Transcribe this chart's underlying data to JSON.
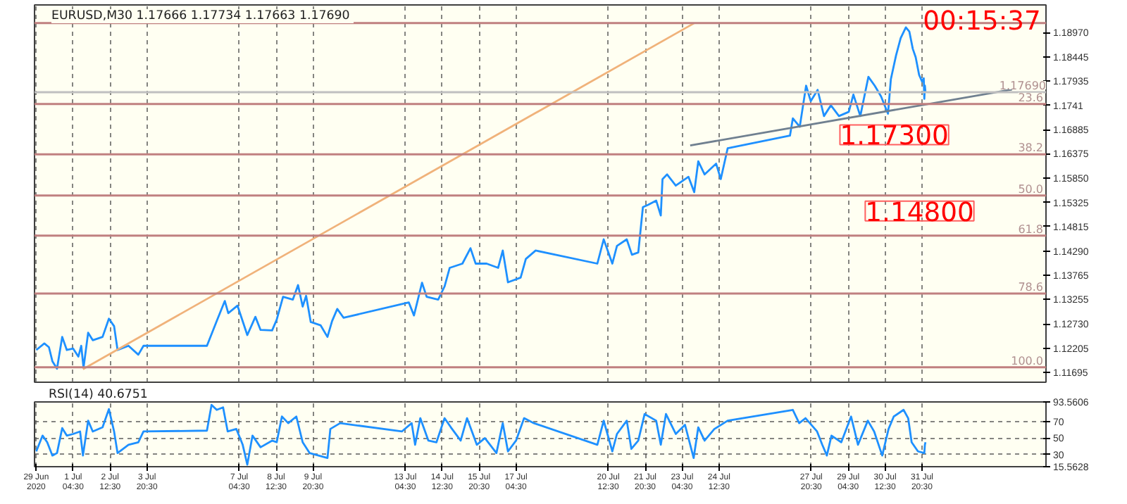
{
  "chart_data": [
    {
      "type": "line",
      "title": "EURUSD,M30  1.17666 1.17734 1.17663 1.17690",
      "tick_labels": "y",
      "grid": "x",
      "xlim": [
        "2020-06-29T19:00",
        "2020-08-05T08:00"
      ],
      "ylim": [
        1.1148,
        1.1956
      ],
      "xticks": [
        {
          "value": "2020-06-29T20:30",
          "label": null
        },
        {
          "value": "2020-07-01T04:30",
          "label": null
        },
        {
          "value": "2020-07-02T12:30",
          "label": null
        },
        {
          "value": "2020-07-03T20:30",
          "label": null
        },
        {
          "value": "2020-07-07T04:30",
          "label": null
        },
        {
          "value": "2020-07-08T12:30",
          "label": null
        },
        {
          "value": "2020-07-09T20:30",
          "label": null
        },
        {
          "value": "2020-07-13T04:30",
          "label": null
        },
        {
          "value": "2020-07-14T12:30",
          "label": null
        },
        {
          "value": "2020-07-15T20:30",
          "label": null
        },
        {
          "value": "2020-07-17T04:30",
          "label": null
        },
        {
          "value": "2020-07-20T12:30",
          "label": null
        },
        {
          "value": "2020-07-21T20:30",
          "label": null
        },
        {
          "value": "2020-07-23T04:30",
          "label": null
        },
        {
          "value": "2020-07-24T12:30",
          "label": null
        },
        {
          "value": "2020-07-27T20:30",
          "label": null
        },
        {
          "value": "2020-07-29T04:30",
          "label": null
        },
        {
          "value": "2020-07-30T12:30",
          "label": null
        },
        {
          "value": "2020-07-31T20:30",
          "label": null
        }
      ],
      "yticks": [
        {
          "value": 1.1897,
          "label": "1.18970"
        },
        1.18445,
        1.17935,
        1.1741,
        1.16885,
        1.16375,
        {
          "value": 1.1585,
          "label": "1.15850"
        },
        1.15325,
        1.14815,
        {
          "value": 1.1429,
          "label": "1.14290"
        },
        1.13765,
        1.13255,
        {
          "value": 1.1273,
          "label": "1.12730"
        },
        1.12205,
        1.11695
      ],
      "series": [
        {
          "color": "#1e90ff",
          "x": [
            "2020-06-29T20:30",
            "2020-06-30T03:30",
            "2020-06-30T07:30",
            "2020-06-30T10:30",
            "2020-06-30T14:30",
            "2020-06-30T19:00",
            "2020-06-30T23:00",
            "2020-07-01T04:30",
            "2020-07-01T09:00",
            "2020-07-01T11:30",
            "2020-07-01T13:30",
            "2020-07-01T17:30",
            "2020-07-01T21:30",
            "2020-07-02T06:00",
            "2020-07-02T11:30",
            "2020-07-02T16:00",
            "2020-07-02T19:00",
            "2020-07-03T04:30",
            "2020-07-03T13:00",
            "2020-07-03T17:30",
            "2020-07-06T00:30",
            "2020-07-06T09:00",
            "2020-07-06T16:00",
            "2020-07-06T19:00",
            "2020-07-07T03:00",
            "2020-07-07T11:30",
            "2020-07-07T18:30",
            "2020-07-07T23:00",
            "2020-07-08T09:00",
            "2020-07-08T13:00",
            "2020-07-08T18:30",
            "2020-07-09T03:00",
            "2020-07-09T07:30",
            "2020-07-09T11:30",
            "2020-07-09T14:30",
            "2020-07-09T18:30",
            "2020-07-10T03:00",
            "2020-07-10T09:00",
            "2020-07-10T13:00",
            "2020-07-10T17:30",
            "2020-07-10T23:00",
            "2020-07-13T07:30",
            "2020-07-13T12:00",
            "2020-07-13T19:00",
            "2020-07-13T23:00",
            "2020-07-14T09:00",
            "2020-07-14T14:30",
            "2020-07-14T19:00",
            "2020-07-15T06:00",
            "2020-07-15T13:00",
            "2020-07-15T17:30",
            "2020-07-16T03:00",
            "2020-07-16T13:00",
            "2020-07-16T17:00",
            "2020-07-16T21:30",
            "2020-07-17T08:30",
            "2020-07-17T13:00",
            "2020-07-17T21:30",
            "2020-07-20T03:00",
            "2020-07-20T08:30",
            "2020-07-20T16:00",
            "2020-07-20T20:00",
            "2020-07-21T04:30",
            "2020-07-21T09:00",
            "2020-07-21T14:30",
            "2020-07-21T18:30",
            "2020-07-21T23:00",
            "2020-07-22T06:00",
            "2020-07-22T10:00",
            "2020-07-22T11:30",
            "2020-07-22T15:30",
            "2020-07-22T23:00",
            "2020-07-23T10:00",
            "2020-07-23T15:00",
            "2020-07-23T18:30",
            "2020-07-24T00:00",
            "2020-07-24T10:00",
            "2020-07-24T14:00",
            "2020-07-24T20:00",
            "2020-07-27T02:00",
            "2020-07-27T04:30",
            "2020-07-27T10:30",
            "2020-07-27T16:00",
            "2020-07-27T20:00",
            "2020-07-28T02:00",
            "2020-07-28T07:30",
            "2020-07-28T13:30",
            "2020-07-28T20:30",
            "2020-07-29T05:00",
            "2020-07-29T09:00",
            "2020-07-29T15:00",
            "2020-07-29T22:00",
            "2020-07-30T03:30",
            "2020-07-30T09:00",
            "2020-07-30T15:00",
            "2020-07-30T17:30",
            "2020-07-30T22:00",
            "2020-07-31T02:00",
            "2020-07-31T06:30",
            "2020-07-31T09:30",
            "2020-07-31T12:30",
            "2020-07-31T15:00",
            "2020-07-31T18:00",
            "2020-07-31T20:30",
            "2020-07-31T22:00",
            "2020-07-31T22:30",
            "2020-07-31T23:00",
            "2020-07-31T23:30"
          ],
          "values": [
            1.1217,
            1.1231,
            1.1223,
            1.1193,
            1.1177,
            1.1245,
            1.1217,
            1.122,
            1.1203,
            1.1226,
            1.1179,
            1.1254,
            1.1238,
            1.1245,
            1.1284,
            1.1268,
            1.1217,
            1.1226,
            1.1207,
            1.1226,
            1.1226,
            1.1279,
            1.1322,
            1.1296,
            1.1312,
            1.1249,
            1.1288,
            1.126,
            1.1259,
            1.1282,
            1.1331,
            1.1325,
            1.1356,
            1.131,
            1.1333,
            1.1277,
            1.127,
            1.1245,
            1.1279,
            1.1305,
            1.1286,
            1.1319,
            1.1291,
            1.1361,
            1.1331,
            1.1325,
            1.1353,
            1.1393,
            1.1402,
            1.1435,
            1.1402,
            1.1402,
            1.1393,
            1.143,
            1.1362,
            1.1372,
            1.1412,
            1.143,
            1.1402,
            1.1454,
            1.1402,
            1.144,
            1.1454,
            1.1421,
            1.1426,
            1.1523,
            1.1528,
            1.1537,
            1.1505,
            1.1583,
            1.1593,
            1.1569,
            1.1588,
            1.1555,
            1.1621,
            1.1593,
            1.1616,
            1.1583,
            1.1649,
            1.1676,
            1.1713,
            1.1695,
            1.1783,
            1.175,
            1.1774,
            1.1718,
            1.1741,
            1.1718,
            1.1727,
            1.1764,
            1.1718,
            1.1802,
            1.1783,
            1.176,
            1.1723,
            1.1797,
            1.1848,
            1.1885,
            1.1908,
            1.1899,
            1.1862,
            1.1844,
            1.1806,
            1.1792,
            1.1799,
            1.1755,
            1.1783,
            1.1769
          ]
        },
        {
          "color": "#f0b27a",
          "x": [
            "2020-07-01T13:00",
            "2020-07-23T15:00"
          ],
          "values": [
            1.1176,
            1.1917
          ]
        },
        {
          "color": "#708090",
          "x": [
            "2020-07-23T11:30",
            "2020-08-04T02:30"
          ],
          "values": [
            1.1655,
            1.1775
          ]
        }
      ],
      "ref_lines": [
        {
          "axis": "y",
          "value": 1.1917,
          "label": null,
          "color": "#c08080"
        },
        {
          "axis": "y",
          "value": 1.1744,
          "label": null,
          "color": "#c08080"
        },
        {
          "axis": "y",
          "value": 1.1636,
          "label": null,
          "color": "#c08080"
        },
        {
          "axis": "y",
          "value": 1.1548,
          "label": null,
          "color": "#c08080"
        },
        {
          "axis": "y",
          "value": 1.1462,
          "label": null,
          "color": "#c08080"
        },
        {
          "axis": "y",
          "value": 1.1338,
          "label": null,
          "color": "#c08080"
        },
        {
          "axis": "y",
          "value": 1.118,
          "label": null,
          "color": "#c08080"
        },
        {
          "axis": "y",
          "value": 1.1769,
          "label": "1.17690",
          "color": "#c0c0c0"
        }
      ],
      "annotations": [
        "00:15:37",
        "1.17300",
        "1.14800",
        "23.6",
        "38.2",
        "50.0",
        "61.8",
        "78.6",
        "100.0"
      ]
    },
    {
      "type": "line",
      "title": "RSI(14) 40.6751",
      "grid": true,
      "xlim": [
        "2020-06-29T19:00",
        "2020-08-05T08:00"
      ],
      "ylim": [
        15.5628,
        93.5606
      ],
      "xticks": [
        {
          "value": "2020-06-29T20:30",
          "label": "29 Jun 2020"
        },
        {
          "value": "2020-07-01T04:30",
          "label": "1 Jul 04:30"
        },
        {
          "value": "2020-07-02T12:30",
          "label": "2 Jul 12:30"
        },
        {
          "value": "2020-07-03T20:30",
          "label": "3 Jul 20:30"
        },
        {
          "value": "2020-07-07T04:30",
          "label": "7 Jul 04:30"
        },
        {
          "value": "2020-07-08T12:30",
          "label": "8 Jul 12:30"
        },
        {
          "value": "2020-07-09T20:30",
          "label": "9 Jul 20:30"
        },
        {
          "value": "2020-07-13T04:30",
          "label": "13 Jul 04:30"
        },
        {
          "value": "2020-07-14T12:30",
          "label": "14 Jul 12:30"
        },
        {
          "value": "2020-07-15T20:30",
          "label": "15 Jul 20:30"
        },
        {
          "value": "2020-07-17T04:30",
          "label": "17 Jul 04:30"
        },
        {
          "value": "2020-07-20T12:30",
          "label": "20 Jul 12:30"
        },
        {
          "value": "2020-07-21T20:30",
          "label": "21 Jul 20:30"
        },
        {
          "value": "2020-07-23T04:30",
          "label": "23 Jul 04:30"
        },
        {
          "value": "2020-07-24T12:30",
          "label": "24 Jul 12:30"
        },
        {
          "value": "2020-07-27T20:30",
          "label": "27 Jul 20:30"
        },
        {
          "value": "2020-07-29T04:30",
          "label": "29 Jul 04:30"
        },
        {
          "value": "2020-07-30T12:30",
          "label": "30 Jul 12:30"
        },
        {
          "value": "2020-07-31T20:30",
          "label": "31 Jul 20:30"
        }
      ],
      "yticks": [
        93.5606,
        70,
        50,
        30,
        15.5628
      ],
      "series": [
        {
          "color": "#1e90ff",
          "x": [
            "2020-06-29T20:30",
            "2020-06-30T02:00",
            "2020-06-30T06:00",
            "2020-06-30T10:30",
            "2020-06-30T14:30",
            "2020-06-30T19:00",
            "2020-06-30T23:00",
            "2020-07-01T04:30",
            "2020-07-01T10:30",
            "2020-07-01T13:00",
            "2020-07-01T17:30",
            "2020-07-01T21:30",
            "2020-07-02T06:00",
            "2020-07-02T11:30",
            "2020-07-02T16:00",
            "2020-07-02T19:00",
            "2020-07-03T04:30",
            "2020-07-03T13:00",
            "2020-07-03T17:30",
            "2020-07-06T00:30",
            "2020-07-06T04:30",
            "2020-07-06T09:00",
            "2020-07-06T14:30",
            "2020-07-06T18:30",
            "2020-07-07T02:00",
            "2020-07-07T07:30",
            "2020-07-07T11:30",
            "2020-07-07T16:00",
            "2020-07-07T23:00",
            "2020-07-08T09:00",
            "2020-07-08T13:00",
            "2020-07-08T17:30",
            "2020-07-08T23:00",
            "2020-07-09T06:00",
            "2020-07-09T11:30",
            "2020-07-09T17:30",
            "2020-07-10T09:00",
            "2020-07-10T11:30",
            "2020-07-10T20:00",
            "2020-07-13T01:30",
            "2020-07-13T10:00",
            "2020-07-13T13:00",
            "2020-07-13T17:30",
            "2020-07-14T00:30",
            "2020-07-14T07:30",
            "2020-07-14T14:30",
            "2020-07-14T20:00",
            "2020-07-15T04:30",
            "2020-07-15T10:00",
            "2020-07-15T18:30",
            "2020-07-16T01:30",
            "2020-07-16T11:30",
            "2020-07-16T17:00",
            "2020-07-16T21:30",
            "2020-07-17T04:30",
            "2020-07-17T11:30",
            "2020-07-17T20:00",
            "2020-07-20T03:00",
            "2020-07-20T08:30",
            "2020-07-20T16:00",
            "2020-07-20T20:00",
            "2020-07-21T04:30",
            "2020-07-21T08:30",
            "2020-07-21T14:30",
            "2020-07-21T20:00",
            "2020-07-22T06:00",
            "2020-07-22T10:00",
            "2020-07-22T14:30",
            "2020-07-22T23:00",
            "2020-07-23T07:00",
            "2020-07-23T14:30",
            "2020-07-23T18:30",
            "2020-07-24T00:00",
            "2020-07-24T08:30",
            "2020-07-24T20:00",
            "2020-07-27T04:30",
            "2020-07-27T10:00",
            "2020-07-27T15:30",
            "2020-07-28T01:30",
            "2020-07-28T06:00",
            "2020-07-28T10:00",
            "2020-07-28T14:00",
            "2020-07-28T22:30",
            "2020-07-29T07:00",
            "2020-07-29T13:00",
            "2020-07-29T21:30",
            "2020-07-30T03:00",
            "2020-07-30T10:00",
            "2020-07-30T15:30",
            "2020-07-30T20:00",
            "2020-07-31T04:30",
            "2020-07-31T08:30",
            "2020-07-31T11:30",
            "2020-07-31T17:00",
            "2020-07-31T22:30",
            "2020-07-31T23:00",
            "2020-07-31T23:30"
          ],
          "values": [
            34,
            53,
            45,
            29,
            32,
            62,
            53,
            55,
            58,
            29,
            71,
            58,
            63,
            85,
            58,
            32,
            42,
            45,
            58,
            59,
            90,
            84,
            87,
            58,
            61,
            42,
            18,
            53,
            39,
            47,
            45,
            76,
            68,
            76,
            45,
            32,
            26,
            61,
            68,
            58,
            68,
            42,
            74,
            47,
            45,
            74,
            63,
            47,
            74,
            42,
            50,
            32,
            68,
            34,
            47,
            74,
            68,
            42,
            71,
            34,
            55,
            71,
            37,
            47,
            79,
            71,
            42,
            79,
            55,
            66,
            26,
            63,
            47,
            61,
            71,
            84,
            68,
            74,
            58,
            42,
            29,
            53,
            45,
            76,
            42,
            71,
            58,
            29,
            61,
            76,
            84,
            74,
            45,
            34,
            32,
            42,
            45
          ]
        }
      ]
    }
  ]
}
